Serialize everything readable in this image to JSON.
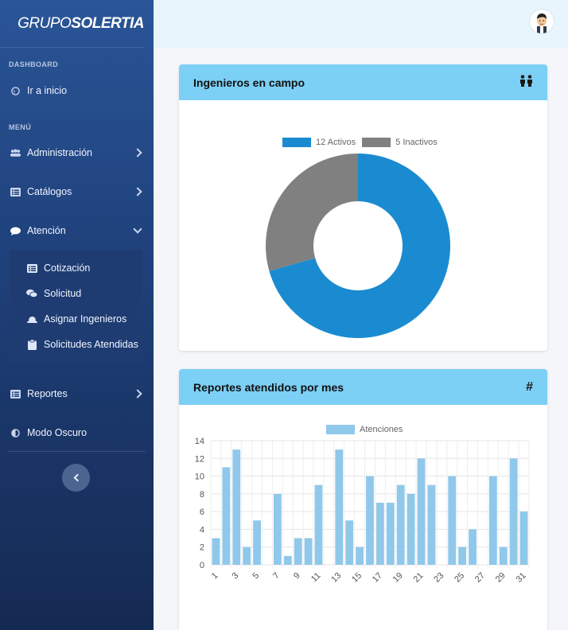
{
  "brand": {
    "part1": "GRUPO",
    "part2": "SOLERTIA"
  },
  "sidebar": {
    "dashboard_title": "DASHBOARD",
    "home": {
      "label": "Ir a inicio",
      "icon": "globe-icon"
    },
    "menu_title": "MENÚ",
    "items": [
      {
        "label": "Administración",
        "icon": "users-icon"
      },
      {
        "label": "Catálogos",
        "icon": "list-icon"
      },
      {
        "label": "Atención",
        "icon": "comment-icon"
      },
      {
        "label": "Reportes",
        "icon": "table-icon"
      },
      {
        "label": "Modo Oscuro",
        "icon": "contrast-icon"
      }
    ],
    "submenu": [
      {
        "label": "Cotización",
        "icon": "list-alt-icon"
      },
      {
        "label": "Solicitud",
        "icon": "comments-icon"
      },
      {
        "label": "Asignar Ingenieros",
        "icon": "hard-hat-icon"
      },
      {
        "label": "Solicitudes Atendidas",
        "icon": "clipboard-icon"
      }
    ]
  },
  "cards": {
    "engineers": {
      "title": "Ingenieros en campo",
      "icon": "people-icon"
    },
    "reports": {
      "title": "Reportes atendidos por mes",
      "icon_text": "#"
    }
  },
  "colors": {
    "accent": "#7ccff5",
    "active": "#1a8bd0",
    "inactive": "#808080",
    "bar": "#8fc8ea"
  },
  "chart_data": [
    {
      "type": "pie",
      "labels": [
        "12 Activos",
        "5 Inactivos"
      ],
      "values": [
        12,
        5
      ],
      "colors": [
        "#1a8bd0",
        "#808080"
      ],
      "legend": "top"
    },
    {
      "type": "bar",
      "series": [
        {
          "name": "Atenciones",
          "values": [
            3,
            11,
            13,
            2,
            5,
            0,
            8,
            1,
            3,
            3,
            9,
            0,
            13,
            5,
            2,
            10,
            7,
            7,
            9,
            8,
            12,
            9,
            0,
            10,
            2,
            4,
            0,
            10,
            2,
            12,
            6
          ]
        }
      ],
      "categories": [
        "1",
        "2",
        "3",
        "4",
        "5",
        "6",
        "7",
        "8",
        "9",
        "10",
        "11",
        "12",
        "13",
        "14",
        "15",
        "16",
        "17",
        "18",
        "19",
        "20",
        "21",
        "22",
        "23",
        "24",
        "25",
        "26",
        "27",
        "28",
        "29",
        "30",
        "31"
      ],
      "tick_labels": [
        "1",
        "3",
        "5",
        "7",
        "9",
        "11",
        "13",
        "15",
        "17",
        "19",
        "21",
        "23",
        "25",
        "27",
        "29",
        "31"
      ],
      "y_ticks": [
        "0",
        "2",
        "4",
        "6",
        "8",
        "10",
        "12",
        "14"
      ],
      "ylim": [
        0,
        14
      ],
      "grid": true,
      "legend": "top"
    }
  ]
}
